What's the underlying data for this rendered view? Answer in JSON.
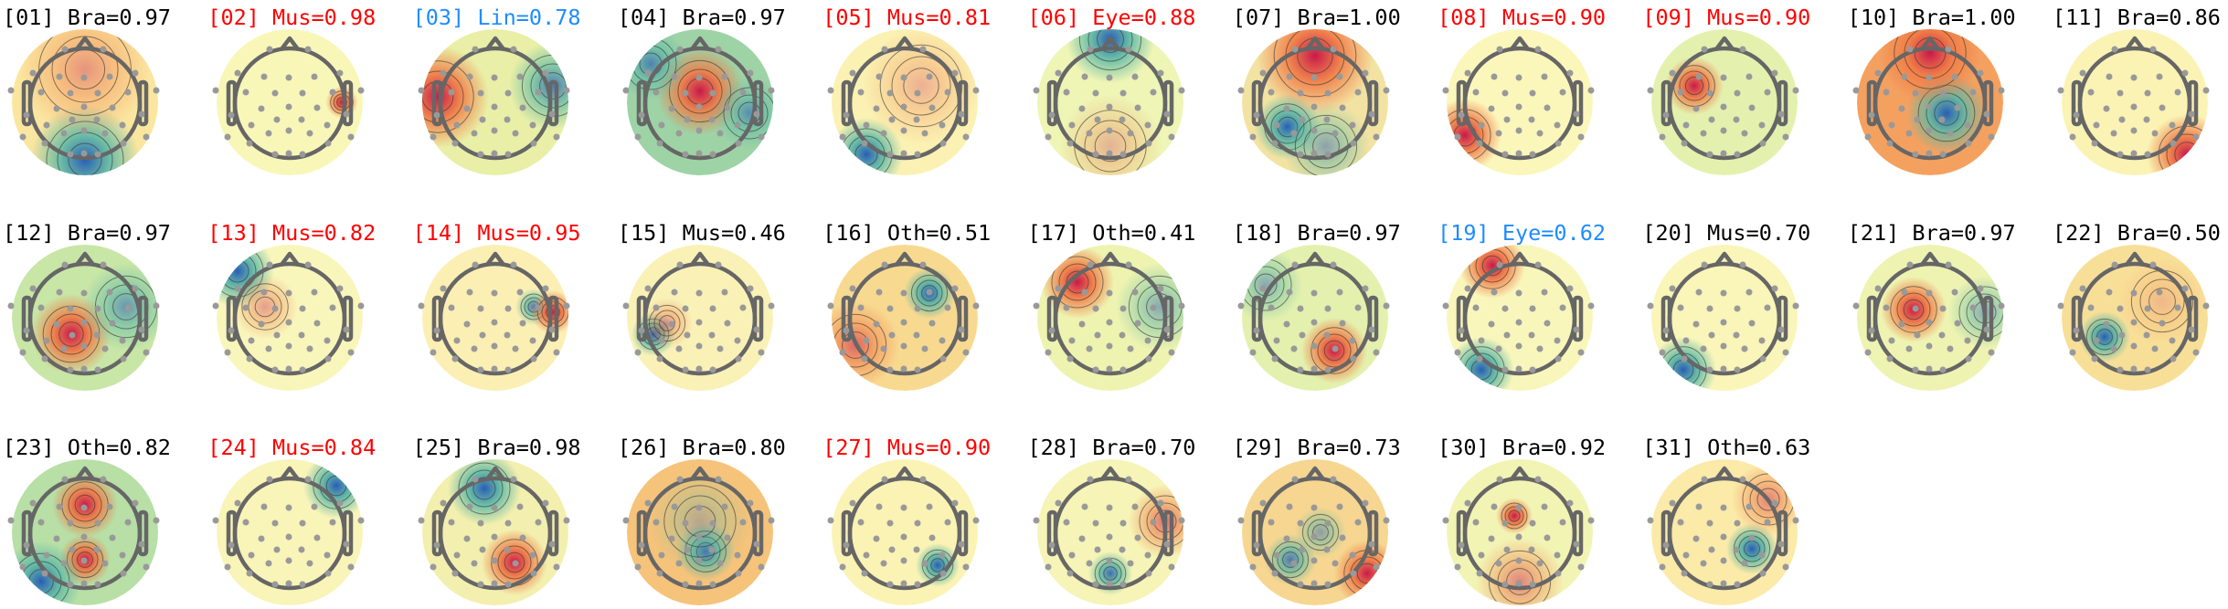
{
  "chart_data": {
    "type": "heatmap",
    "layout": "grid of scalp topographic maps, 11 per row",
    "colormap": "spectral (red positive, yellow neutral, blue negative)",
    "label_colors": {
      "Bra": "#000000",
      "Oth": "#000000",
      "Mus_low": "#000000",
      "flagged_red": "#ff0000",
      "flagged_blue": "#1e8cff"
    },
    "components": [
      {
        "label": "[01] Bra=0.97",
        "index": "01",
        "category": "Bra",
        "score": 0.97,
        "color": "#000000"
      },
      {
        "label": "[02] Mus=0.98",
        "index": "02",
        "category": "Mus",
        "score": 0.98,
        "color": "#ff0000"
      },
      {
        "label": "[03] Lin=0.78",
        "index": "03",
        "category": "Lin",
        "score": 0.78,
        "color": "#1e8cff"
      },
      {
        "label": "[04] Bra=0.97",
        "index": "04",
        "category": "Bra",
        "score": 0.97,
        "color": "#000000"
      },
      {
        "label": "[05] Mus=0.81",
        "index": "05",
        "category": "Mus",
        "score": 0.81,
        "color": "#ff0000"
      },
      {
        "label": "[06] Eye=0.88",
        "index": "06",
        "category": "Eye",
        "score": 0.88,
        "color": "#ff0000"
      },
      {
        "label": "[07] Bra=1.00",
        "index": "07",
        "category": "Bra",
        "score": 1.0,
        "color": "#000000"
      },
      {
        "label": "[08] Mus=0.90",
        "index": "08",
        "category": "Mus",
        "score": 0.9,
        "color": "#ff0000"
      },
      {
        "label": "[09] Mus=0.90",
        "index": "09",
        "category": "Mus",
        "score": 0.9,
        "color": "#ff0000"
      },
      {
        "label": "[10] Bra=1.00",
        "index": "10",
        "category": "Bra",
        "score": 1.0,
        "color": "#000000"
      },
      {
        "label": "[11] Bra=0.86",
        "index": "11",
        "category": "Bra",
        "score": 0.86,
        "color": "#000000"
      },
      {
        "label": "[12] Bra=0.97",
        "index": "12",
        "category": "Bra",
        "score": 0.97,
        "color": "#000000"
      },
      {
        "label": "[13] Mus=0.82",
        "index": "13",
        "category": "Mus",
        "score": 0.82,
        "color": "#ff0000"
      },
      {
        "label": "[14] Mus=0.95",
        "index": "14",
        "category": "Mus",
        "score": 0.95,
        "color": "#ff0000"
      },
      {
        "label": "[15] Mus=0.46",
        "index": "15",
        "category": "Mus",
        "score": 0.46,
        "color": "#000000"
      },
      {
        "label": "[16] Oth=0.51",
        "index": "16",
        "category": "Oth",
        "score": 0.51,
        "color": "#000000"
      },
      {
        "label": "[17] Oth=0.41",
        "index": "17",
        "category": "Oth",
        "score": 0.41,
        "color": "#000000"
      },
      {
        "label": "[18] Bra=0.97",
        "index": "18",
        "category": "Bra",
        "score": 0.97,
        "color": "#000000"
      },
      {
        "label": "[19] Eye=0.62",
        "index": "19",
        "category": "Eye",
        "score": 0.62,
        "color": "#1e8cff"
      },
      {
        "label": "[20] Mus=0.70",
        "index": "20",
        "category": "Mus",
        "score": 0.7,
        "color": "#000000"
      },
      {
        "label": "[21] Bra=0.97",
        "index": "21",
        "category": "Bra",
        "score": 0.97,
        "color": "#000000"
      },
      {
        "label": "[22] Bra=0.50",
        "index": "22",
        "category": "Bra",
        "score": 0.5,
        "color": "#000000"
      },
      {
        "label": "[23] Oth=0.82",
        "index": "23",
        "category": "Oth",
        "score": 0.82,
        "color": "#000000"
      },
      {
        "label": "[24] Mus=0.84",
        "index": "24",
        "category": "Mus",
        "score": 0.84,
        "color": "#ff0000"
      },
      {
        "label": "[25] Bra=0.98",
        "index": "25",
        "category": "Bra",
        "score": 0.98,
        "color": "#000000"
      },
      {
        "label": "[26] Bra=0.80",
        "index": "26",
        "category": "Bra",
        "score": 0.8,
        "color": "#000000"
      },
      {
        "label": "[27] Mus=0.90",
        "index": "27",
        "category": "Mus",
        "score": 0.9,
        "color": "#ff0000"
      },
      {
        "label": "[28] Bra=0.70",
        "index": "28",
        "category": "Bra",
        "score": 0.7,
        "color": "#000000"
      },
      {
        "label": "[29] Bra=0.73",
        "index": "29",
        "category": "Bra",
        "score": 0.73,
        "color": "#000000"
      },
      {
        "label": "[30] Bra=0.92",
        "index": "30",
        "category": "Bra",
        "score": 0.92,
        "color": "#000000"
      },
      {
        "label": "[31] Oth=0.63",
        "index": "31",
        "category": "Oth",
        "score": 0.63,
        "color": "#000000"
      }
    ]
  }
}
